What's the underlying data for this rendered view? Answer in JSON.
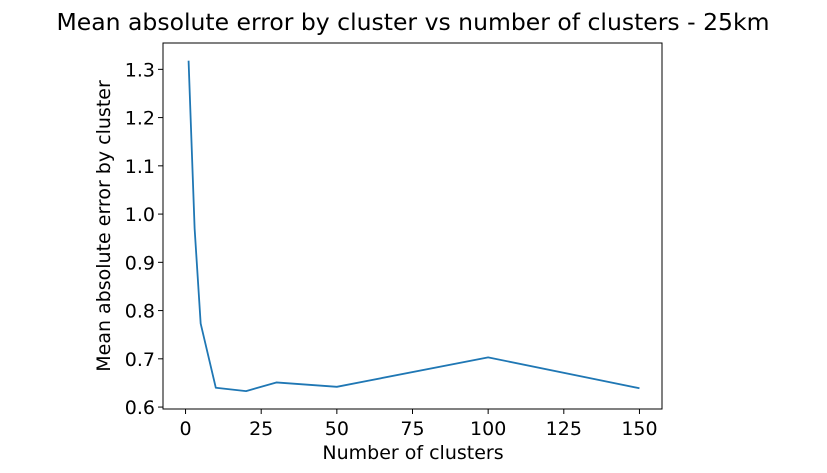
{
  "chart_data": {
    "type": "line",
    "title": "Mean absolute error by cluster vs number of clusters - 25km",
    "xlabel": "Number of clusters",
    "ylabel": "Mean absolute error by cluster",
    "xlim": [
      -7.45,
      157.45
    ],
    "ylim": [
      0.596,
      1.3546
    ],
    "xticks": [
      0,
      25,
      50,
      75,
      100,
      125,
      150
    ],
    "yticks": [
      0.6,
      0.7,
      0.8,
      0.9,
      1.0,
      1.1,
      1.2,
      1.3
    ],
    "xtick_labels": [
      "0",
      "25",
      "50",
      "75",
      "100",
      "125",
      "150"
    ],
    "ytick_labels": [
      "0.6",
      "0.7",
      "0.8",
      "0.9",
      "1.0",
      "1.1",
      "1.2",
      "1.3"
    ],
    "grid": false,
    "legend": "none",
    "series": [
      {
        "color": "#1f77b4",
        "x": [
          1,
          3,
          5,
          10,
          20,
          30,
          50,
          100,
          150
        ],
        "values": [
          1.318,
          0.97,
          0.773,
          0.64,
          0.633,
          0.651,
          0.642,
          0.703,
          0.639
        ]
      }
    ]
  }
}
